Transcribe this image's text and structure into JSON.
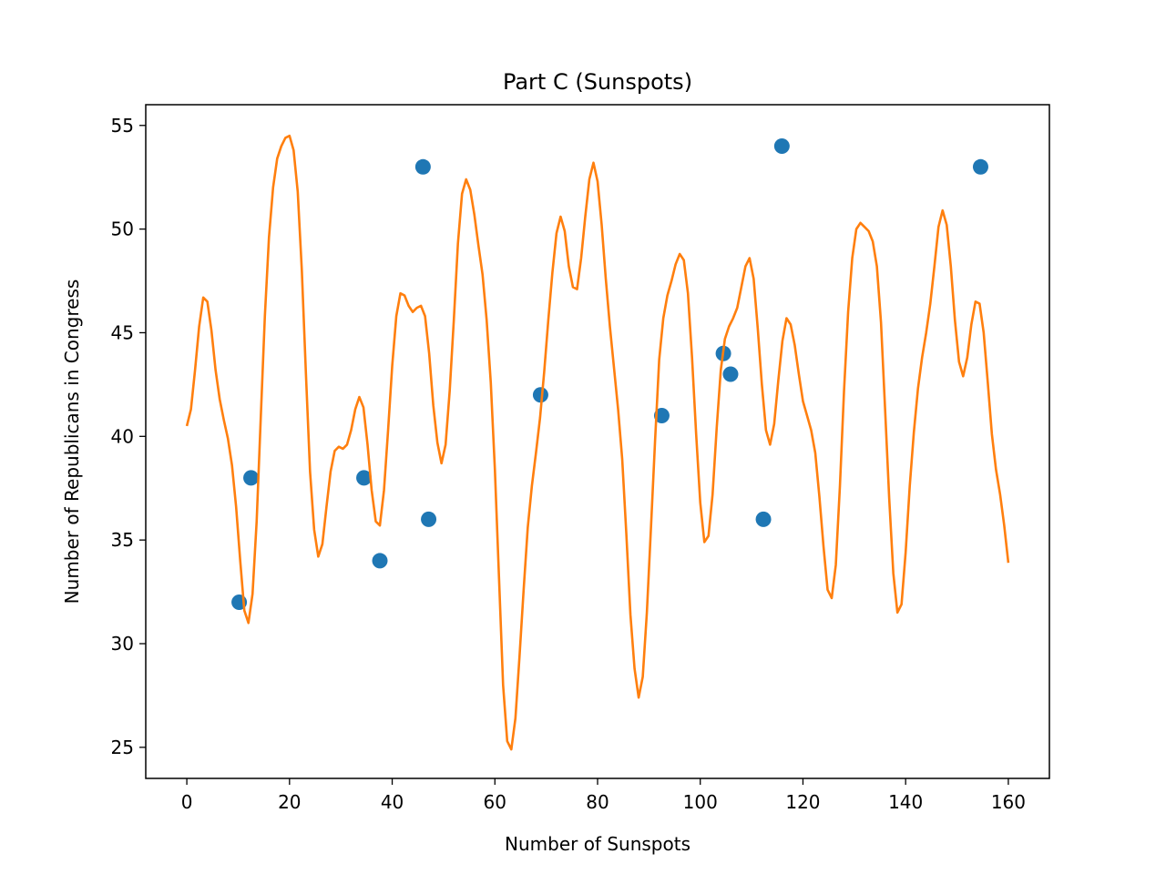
{
  "chart_data": {
    "type": "scatter",
    "title": "Part C (Sunspots)",
    "xlabel": "Number of Sunspots",
    "ylabel": "Number of Republicans in Congress",
    "xlim": [
      -8,
      168
    ],
    "ylim": [
      23.5,
      56
    ],
    "xticks": [
      0,
      20,
      40,
      60,
      80,
      100,
      120,
      140,
      160
    ],
    "yticks": [
      25,
      30,
      35,
      40,
      45,
      50,
      55
    ],
    "grid": false,
    "legend": "none",
    "series": [
      {
        "kind": "scatter",
        "color": "#1f77b4",
        "x": [
          10.2,
          12.5,
          34.5,
          37.6,
          46.0,
          47.1,
          68.9,
          92.5,
          104.5,
          105.9,
          112.3,
          115.9,
          154.6
        ],
        "y": [
          32,
          38,
          38,
          34,
          53,
          36,
          42,
          41,
          44,
          43,
          36,
          54,
          53
        ]
      },
      {
        "kind": "line",
        "color": "#ff7f0e",
        "x": [
          0,
          0.8,
          1.6,
          2.4,
          3.2,
          4.0,
          4.8,
          5.6,
          6.4,
          7.2,
          8.0,
          8.8,
          9.6,
          10.4,
          11.2,
          12.0,
          12.8,
          13.6,
          14.4,
          15.2,
          16.0,
          16.8,
          17.6,
          18.4,
          19.2,
          20.0,
          20.8,
          21.6,
          22.4,
          23.2,
          24.0,
          24.8,
          25.6,
          26.4,
          27.2,
          28.0,
          28.8,
          29.6,
          30.4,
          31.2,
          32.0,
          32.8,
          33.6,
          34.4,
          35.2,
          36.0,
          36.8,
          37.6,
          38.4,
          39.2,
          40.0,
          40.8,
          41.6,
          42.4,
          43.2,
          44.0,
          44.8,
          45.6,
          46.4,
          47.2,
          48.0,
          48.8,
          49.6,
          50.4,
          51.2,
          52.0,
          52.8,
          53.6,
          54.4,
          55.2,
          56.0,
          56.8,
          57.6,
          58.4,
          59.2,
          60.0,
          60.8,
          61.6,
          62.4,
          63.2,
          64.0,
          64.8,
          65.6,
          66.4,
          67.2,
          68.0,
          68.8,
          69.6,
          70.4,
          71.2,
          72.0,
          72.8,
          73.6,
          74.4,
          75.2,
          76.0,
          76.8,
          77.6,
          78.4,
          79.2,
          80.0,
          80.8,
          81.6,
          82.4,
          83.2,
          84.0,
          84.8,
          85.6,
          86.4,
          87.2,
          88.0,
          88.8,
          89.6,
          90.4,
          91.2,
          92.0,
          92.8,
          93.6,
          94.4,
          95.2,
          96.0,
          96.8,
          97.6,
          98.4,
          99.2,
          100.0,
          100.8,
          101.6,
          102.4,
          103.2,
          104.0,
          104.8,
          105.6,
          106.4,
          107.2,
          108.0,
          108.8,
          109.6,
          110.4,
          111.2,
          112.0,
          112.8,
          113.6,
          114.4,
          115.2,
          116.0,
          116.8,
          117.6,
          118.4,
          119.2,
          120.0,
          120.8,
          121.6,
          122.4,
          123.2,
          124.0,
          124.8,
          125.6,
          126.4,
          127.2,
          128.0,
          128.8,
          129.6,
          130.4,
          131.2,
          132.0,
          132.8,
          133.6,
          134.4,
          135.2,
          136.0,
          136.8,
          137.6,
          138.4,
          139.2,
          140.0,
          140.8,
          141.6,
          142.4,
          143.2,
          144.0,
          144.8,
          145.6,
          146.4,
          147.2,
          148.0,
          148.8,
          149.6,
          150.4,
          151.2,
          152.0,
          152.8,
          153.6,
          154.4,
          155.2,
          156.0,
          156.8,
          157.6,
          158.4,
          159.2,
          160.0
        ],
        "y": [
          40.5,
          41.3,
          43.2,
          45.3,
          46.7,
          46.5,
          45.1,
          43.2,
          41.8,
          40.8,
          39.9,
          38.6,
          36.6,
          34.0,
          31.6,
          31.0,
          32.4,
          35.9,
          40.9,
          45.8,
          49.6,
          52.0,
          53.4,
          54.0,
          54.4,
          54.5,
          53.8,
          51.8,
          48.0,
          43.0,
          38.3,
          35.5,
          34.2,
          34.8,
          36.6,
          38.3,
          39.3,
          39.5,
          39.4,
          39.6,
          40.3,
          41.3,
          41.9,
          41.4,
          39.6,
          37.4,
          35.9,
          35.7,
          37.4,
          40.3,
          43.4,
          45.8,
          46.9,
          46.8,
          46.3,
          46.0,
          46.2,
          46.3,
          45.8,
          44.0,
          41.5,
          39.7,
          38.7,
          39.6,
          42.2,
          45.6,
          49.3,
          51.7,
          52.4,
          51.9,
          50.7,
          49.2,
          47.8,
          45.6,
          42.6,
          38.4,
          33.2,
          28.0,
          25.3,
          24.9,
          26.4,
          29.4,
          32.6,
          35.6,
          37.6,
          39.2,
          40.9,
          43.1,
          45.6,
          47.9,
          49.8,
          50.6,
          49.9,
          48.2,
          47.2,
          47.1,
          48.6,
          50.6,
          52.4,
          53.2,
          52.3,
          50.2,
          47.6,
          45.3,
          43.3,
          41.3,
          38.9,
          35.3,
          31.4,
          28.8,
          27.4,
          28.4,
          31.5,
          35.6,
          39.8,
          43.7,
          45.7,
          46.8,
          47.5,
          48.3,
          48.8,
          48.5,
          46.9,
          43.8,
          40.1,
          36.8,
          34.9,
          35.2,
          37.2,
          40.4,
          43.2,
          44.7,
          45.3,
          45.7,
          46.2,
          47.2,
          48.2,
          48.6,
          47.6,
          45.2,
          42.5,
          40.3,
          39.6,
          40.6,
          42.7,
          44.6,
          45.7,
          45.4,
          44.4,
          43.0,
          41.7,
          41.0,
          40.3,
          39.2,
          37.1,
          34.7,
          32.6,
          32.2,
          33.8,
          37.6,
          42.2,
          46.0,
          48.6,
          50.0,
          50.3,
          50.1,
          49.9,
          49.4,
          48.2,
          45.5,
          41.3,
          37.0,
          33.4,
          31.5,
          31.9,
          34.4,
          37.6,
          40.2,
          42.3,
          43.8,
          45.0,
          46.4,
          48.2,
          50.1,
          50.9,
          50.2,
          48.2,
          45.6,
          43.6,
          42.9,
          43.8,
          45.4,
          46.5,
          46.4,
          45.0,
          42.6,
          40.1,
          38.4,
          37.2,
          35.7,
          33.9
        ]
      }
    ]
  }
}
